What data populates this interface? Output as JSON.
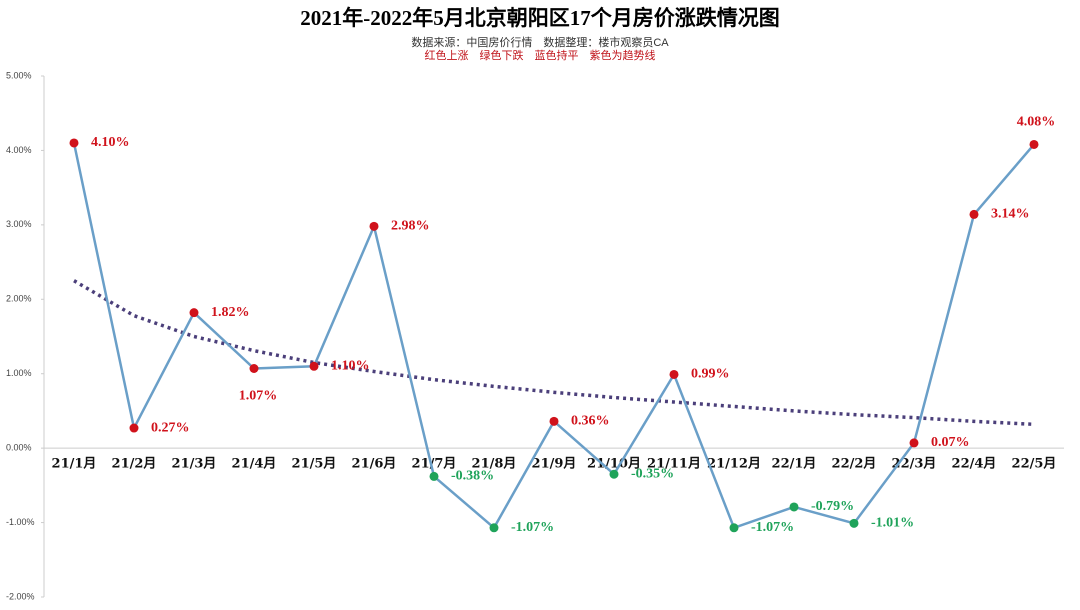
{
  "chart_data": {
    "type": "line",
    "title": "2021年-2022年5月北京朝阳区17个月房价涨跌情况图",
    "subtitle": "数据来源：中国房价行情　数据整理：楼市观察员CA",
    "note": "红色上涨　绿色下跌　蓝色持平　紫色为趋势线",
    "categories": [
      "21/1月",
      "21/2月",
      "21/3月",
      "21/4月",
      "21/5月",
      "21/6月",
      "21/7月",
      "21/8月",
      "21/9月",
      "21/10月",
      "21/11月",
      "21/12月",
      "22/1月",
      "22/2月",
      "22/3月",
      "22/4月",
      "22/5月"
    ],
    "values": [
      4.1,
      0.27,
      1.82,
      1.07,
      1.1,
      2.98,
      -0.38,
      -1.07,
      0.36,
      -0.35,
      0.99,
      -1.07,
      -0.79,
      -1.01,
      0.07,
      3.14,
      4.08
    ],
    "value_labels": [
      "4.10%",
      "0.27%",
      "1.82%",
      "1.07%",
      "1.10%",
      "2.98%",
      "-0.38%",
      "-1.07%",
      "0.36%",
      "-0.35%",
      "0.99%",
      "-1.07%",
      "-0.79%",
      "-1.01%",
      "0.07%",
      "3.14%",
      "4.08%"
    ],
    "color": "#6a9fc8",
    "up_color": "#d0121b",
    "down_color": "#1fa35a",
    "trendline": {
      "color": "#4b3f7a",
      "values": [
        2.25,
        1.78,
        1.5,
        1.31,
        1.15,
        1.03,
        0.92,
        0.83,
        0.75,
        0.68,
        0.62,
        0.56,
        0.5,
        0.45,
        0.41,
        0.36,
        0.32
      ]
    },
    "ylim": [
      -2,
      5
    ],
    "yticks": [
      {
        "value": -2,
        "label": "-2.00%"
      },
      {
        "value": -1,
        "label": "-1.00%"
      },
      {
        "value": 0,
        "label": "0.00%"
      },
      {
        "value": 1,
        "label": "1.00%"
      },
      {
        "value": 2,
        "label": "2.00%"
      },
      {
        "value": 3,
        "label": "3.00%"
      },
      {
        "value": 4,
        "label": "4.00%"
      },
      {
        "value": 5,
        "label": "5.00%"
      }
    ],
    "grid": false
  }
}
